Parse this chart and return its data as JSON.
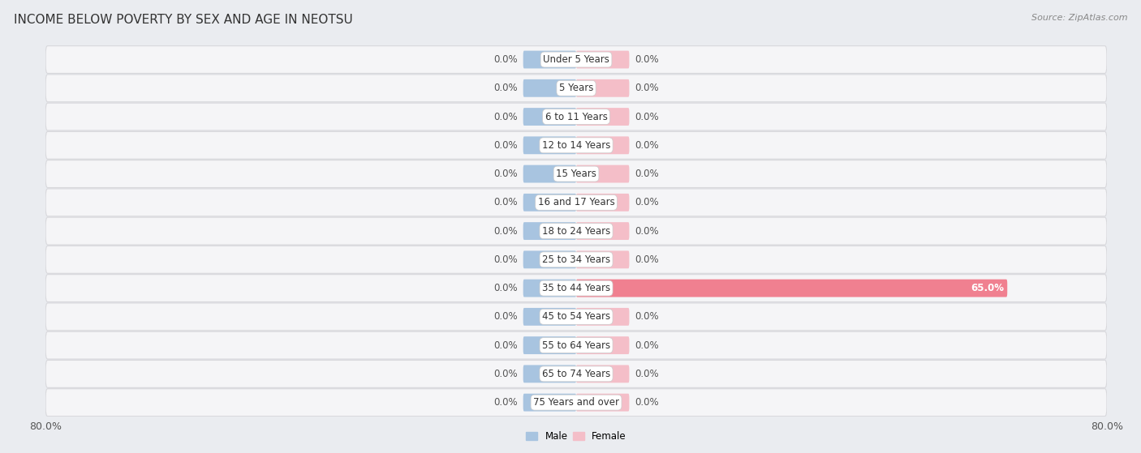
{
  "title": "INCOME BELOW POVERTY BY SEX AND AGE IN NEOTSU",
  "source": "Source: ZipAtlas.com",
  "categories": [
    "Under 5 Years",
    "5 Years",
    "6 to 11 Years",
    "12 to 14 Years",
    "15 Years",
    "16 and 17 Years",
    "18 to 24 Years",
    "25 to 34 Years",
    "35 to 44 Years",
    "45 to 54 Years",
    "55 to 64 Years",
    "65 to 74 Years",
    "75 Years and over"
  ],
  "male_values": [
    0.0,
    0.0,
    0.0,
    0.0,
    0.0,
    0.0,
    0.0,
    0.0,
    0.0,
    0.0,
    0.0,
    0.0,
    0.0
  ],
  "female_values": [
    0.0,
    0.0,
    0.0,
    0.0,
    0.0,
    0.0,
    0.0,
    0.0,
    65.0,
    0.0,
    0.0,
    0.0,
    0.0
  ],
  "male_color": "#a8c4e0",
  "female_color": "#f08090",
  "female_color_light": "#f4bec8",
  "male_label": "Male",
  "female_label": "Female",
  "xlim": 80.0,
  "min_bar_display": 8.0,
  "background_color": "#eaecf0",
  "row_color": "#f5f5f7",
  "row_border_color": "#d8d8dc",
  "title_fontsize": 11,
  "axis_label_fontsize": 9,
  "bar_label_fontsize": 8.5,
  "category_fontsize": 8.5,
  "source_fontsize": 8
}
